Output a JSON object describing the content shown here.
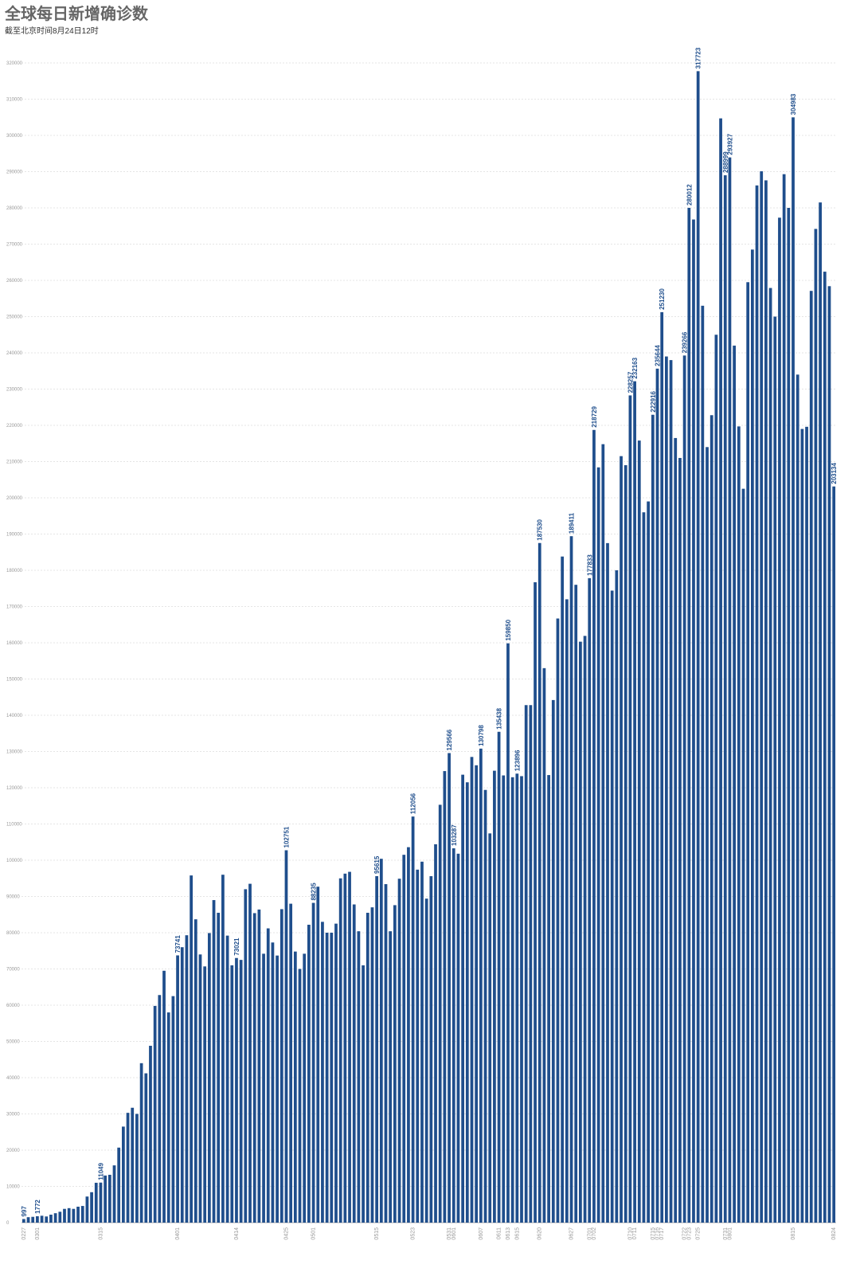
{
  "chart_data": {
    "type": "bar",
    "title": "全球每日新增确诊数",
    "subtitle": "截至北京时间8月24日12时",
    "color": "#1f4e8c",
    "grid": true,
    "ylim": [
      0,
      320000
    ],
    "yticks": [
      0,
      10000,
      20000,
      30000,
      40000,
      50000,
      60000,
      70000,
      80000,
      90000,
      100000,
      110000,
      120000,
      130000,
      140000,
      150000,
      160000,
      170000,
      180000,
      190000,
      200000,
      210000,
      220000,
      230000,
      240000,
      250000,
      260000,
      270000,
      280000,
      290000,
      300000,
      310000,
      320000
    ],
    "categories": [
      "0227",
      null,
      null,
      "0301",
      null,
      null,
      null,
      null,
      null,
      null,
      null,
      null,
      null,
      null,
      null,
      null,
      null,
      "0315",
      null,
      null,
      null,
      null,
      null,
      null,
      null,
      null,
      null,
      null,
      null,
      null,
      null,
      null,
      null,
      null,
      "0401",
      null,
      null,
      null,
      null,
      null,
      null,
      null,
      null,
      null,
      null,
      null,
      null,
      "0414",
      null,
      null,
      null,
      null,
      null,
      null,
      null,
      null,
      null,
      null,
      "0425",
      null,
      null,
      null,
      null,
      null,
      "0501",
      null,
      null,
      null,
      null,
      null,
      null,
      null,
      null,
      null,
      null,
      null,
      null,
      null,
      "0515",
      null,
      null,
      null,
      null,
      null,
      null,
      null,
      "0523",
      null,
      null,
      null,
      null,
      null,
      null,
      null,
      "0531",
      "0601",
      null,
      null,
      null,
      null,
      null,
      "0607",
      null,
      null,
      null,
      "0611",
      null,
      "0613",
      null,
      "0615",
      null,
      null,
      null,
      null,
      "0620",
      null,
      null,
      null,
      null,
      null,
      null,
      "0627",
      null,
      null,
      null,
      "0701",
      "0702",
      null,
      null,
      null,
      null,
      null,
      null,
      null,
      "0710",
      "0711",
      null,
      null,
      null,
      "0715",
      "0716",
      "0717",
      null,
      null,
      null,
      null,
      "0722",
      "0723",
      null,
      "0725",
      null,
      null,
      null,
      null,
      null,
      "0731",
      "0801",
      null,
      null,
      null,
      null,
      null,
      null,
      null,
      null,
      null,
      null,
      null,
      null,
      null,
      "0815",
      null,
      null,
      null,
      null,
      null,
      null,
      null,
      null,
      "0824"
    ],
    "values": [
      997,
      1500,
      1600,
      1772,
      1900,
      1700,
      2200,
      2600,
      3000,
      3800,
      4000,
      3800,
      4400,
      4600,
      7200,
      8400,
      11000,
      11049,
      13000,
      13200,
      15800,
      20700,
      26500,
      30300,
      31700,
      30000,
      44000,
      41200,
      48800,
      59800,
      62800,
      69500,
      58000,
      62500,
      73741,
      76000,
      79300,
      95800,
      83700,
      74000,
      70700,
      79900,
      89000,
      85500,
      96000,
      79200,
      71000,
      73021,
      72500,
      92000,
      93500,
      85400,
      86400,
      74200,
      81200,
      77300,
      73700,
      86500,
      102751,
      88000,
      74800,
      70000,
      74200,
      82200,
      88235,
      92700,
      83000,
      80000,
      80000,
      82500,
      95000,
      96300,
      96800,
      87800,
      80400,
      71000,
      85500,
      87000,
      95615,
      100400,
      93400,
      80400,
      87600,
      94900,
      101500,
      103600,
      112056,
      97400,
      99600,
      89400,
      95600,
      104400,
      115300,
      124600,
      129566,
      103287,
      101800,
      123600,
      121500,
      128500,
      126200,
      130798,
      119400,
      107400,
      124700,
      135438,
      123400,
      159850,
      122900,
      123896,
      123200,
      142800,
      142800,
      176700,
      187530,
      153000,
      123500,
      144200,
      166700,
      183800,
      172000,
      189411,
      176000,
      160300,
      161900,
      177833,
      218729,
      208400,
      214800,
      187500,
      174400,
      180000,
      211500,
      209000,
      228257,
      232163,
      215800,
      196000,
      199000,
      222916,
      235644,
      251230,
      239000,
      238000,
      216500,
      211000,
      239266,
      280012,
      276800,
      317723,
      253000,
      214000,
      222800,
      245000,
      304700,
      288999,
      293927,
      242000,
      219700,
      202500,
      259500,
      268500,
      286200,
      290100,
      287600,
      257900,
      250000,
      277300,
      289300,
      280000,
      304983,
      234000,
      219000,
      219600,
      257100,
      274200,
      281500,
      262400,
      258400,
      203134
    ],
    "value_labels": [
      "997",
      null,
      null,
      "1772",
      null,
      null,
      null,
      null,
      null,
      null,
      null,
      null,
      null,
      null,
      null,
      null,
      null,
      "11049",
      null,
      null,
      null,
      null,
      null,
      null,
      null,
      null,
      null,
      null,
      null,
      null,
      null,
      null,
      null,
      null,
      "73741",
      null,
      null,
      null,
      null,
      null,
      null,
      null,
      null,
      null,
      null,
      null,
      null,
      "73021",
      null,
      null,
      null,
      null,
      null,
      null,
      null,
      null,
      null,
      null,
      "102751",
      null,
      null,
      null,
      null,
      null,
      "88235",
      null,
      null,
      null,
      null,
      null,
      null,
      null,
      null,
      null,
      null,
      null,
      null,
      null,
      "95615",
      null,
      null,
      null,
      null,
      null,
      null,
      null,
      "112056",
      null,
      null,
      null,
      null,
      null,
      null,
      null,
      "129566",
      "103287",
      null,
      null,
      null,
      null,
      null,
      "130798",
      null,
      null,
      null,
      "135438",
      null,
      "159850",
      null,
      "123896",
      null,
      null,
      null,
      null,
      "187530",
      null,
      null,
      null,
      null,
      null,
      null,
      "189411",
      null,
      null,
      null,
      "177833",
      "218729",
      null,
      null,
      null,
      null,
      null,
      null,
      null,
      "228257",
      "232163",
      null,
      null,
      null,
      "222916",
      "235644",
      "251230",
      null,
      null,
      null,
      null,
      "239266",
      "280012",
      null,
      "317723",
      null,
      null,
      null,
      null,
      null,
      "288999",
      "293927",
      null,
      null,
      null,
      null,
      null,
      null,
      null,
      null,
      null,
      null,
      null,
      null,
      null,
      "304983",
      null,
      null,
      null,
      null,
      null,
      null,
      null,
      null,
      "203134"
    ]
  }
}
